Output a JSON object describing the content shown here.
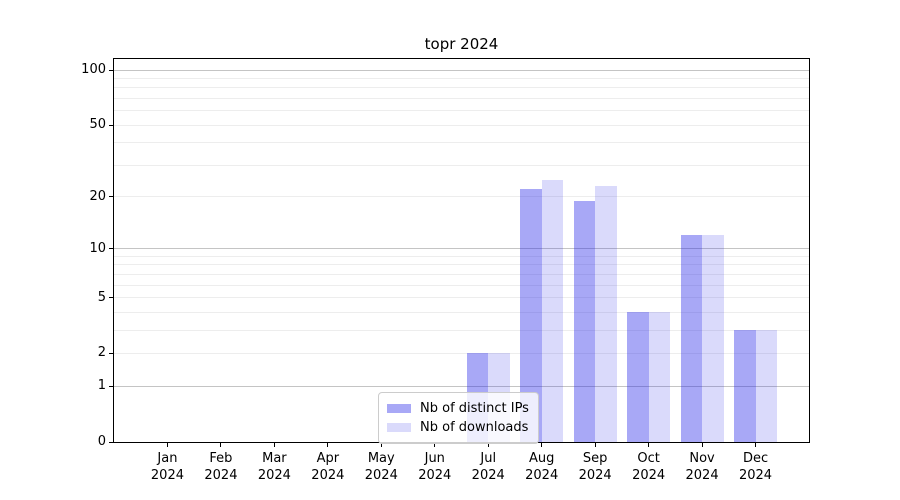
{
  "title": "topr 2024",
  "chart_data": {
    "type": "bar",
    "title": "topr 2024",
    "categories": [
      "Jan 2024",
      "Feb 2024",
      "Mar 2024",
      "Apr 2024",
      "May 2024",
      "Jun 2024",
      "Jul 2024",
      "Aug 2024",
      "Sep 2024",
      "Oct 2024",
      "Nov 2024",
      "Dec 2024"
    ],
    "series": [
      {
        "name": "Nb of distinct IPs",
        "color": "rgba(38,38,233,0.40)",
        "values": [
          0,
          0,
          0,
          0,
          0,
          0,
          2,
          22,
          19,
          4,
          12,
          3
        ]
      },
      {
        "name": "Nb of downloads",
        "color": "rgba(38,38,233,0.17)",
        "values": [
          0,
          0,
          0,
          0,
          0,
          0,
          2,
          25,
          23,
          4,
          12,
          3
        ]
      }
    ],
    "xlabel": "",
    "ylabel": "",
    "yscale": "log1p",
    "ylim": [
      0,
      115
    ],
    "yticks": [
      0,
      1,
      2,
      5,
      10,
      20,
      50,
      100
    ],
    "grid_major": [
      1,
      10,
      100
    ],
    "grid_minor": [
      2,
      3,
      4,
      5,
      6,
      7,
      8,
      9,
      20,
      30,
      40,
      50,
      60,
      70,
      80,
      90
    ],
    "grid": "on",
    "legend_position": "lower center"
  },
  "colors": {
    "bar_dark": "rgba(38,38,233,0.40)",
    "bar_light": "rgba(38,38,233,0.17)",
    "grid_major": "#c4c4c4",
    "grid_minor": "#ededed",
    "axis": "#000000",
    "legend_border": "#cccccc"
  }
}
